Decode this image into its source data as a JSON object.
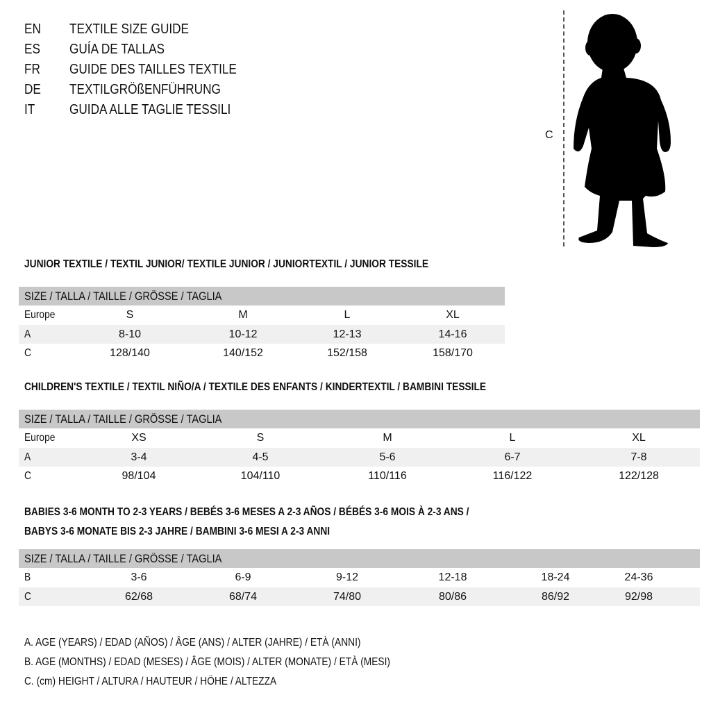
{
  "languages": [
    {
      "code": "EN",
      "title": "TEXTILE SIZE GUIDE"
    },
    {
      "code": "ES",
      "title": "GUÍA DE TALLAS"
    },
    {
      "code": "FR",
      "title": "GUIDE DES TAILLES TEXTILE"
    },
    {
      "code": "DE",
      "title": "TEXTILGRÖßENFÜHRUNG"
    },
    {
      "code": "IT",
      "title": "GUIDA ALLE TAGLIE TESSILI"
    }
  ],
  "figure": {
    "height_label": "C",
    "icon": "child-silhouette-icon"
  },
  "junior": {
    "title": "JUNIOR TEXTILE / TEXTIL JUNIOR/ TEXTILE JUNIOR / JUNIORTEXTIL / JUNIOR TESSILE",
    "header": "SIZE / TALLA / TAILLE / GRÖSSE / TAGLIA",
    "rows": [
      {
        "label": "Europe",
        "cells": [
          "S",
          "M",
          "L",
          "XL"
        ]
      },
      {
        "label": "A",
        "cells": [
          "8-10",
          "10-12",
          "12-13",
          "14-16"
        ]
      },
      {
        "label": "C",
        "cells": [
          "128/140",
          "140/152",
          "152/158",
          "158/170"
        ]
      }
    ]
  },
  "children": {
    "title": "CHILDREN'S TEXTILE / TEXTIL NIÑO/A / TEXTILE DES ENFANTS / KINDERTEXTIL / BAMBINI TESSILE",
    "header": "SIZE / TALLA / TAILLE / GRÖSSE / TAGLIA",
    "rows": [
      {
        "label": "Europe",
        "cells": [
          "XS",
          "S",
          "M",
          "L",
          "XL"
        ]
      },
      {
        "label": "A",
        "cells": [
          "3-4",
          "4-5",
          "5-6",
          "6-7",
          "7-8"
        ]
      },
      {
        "label": "C",
        "cells": [
          "98/104",
          "104/110",
          "110/116",
          "116/122",
          "122/128"
        ]
      }
    ]
  },
  "babies": {
    "title_line1": "BABIES 3-6 MONTH TO 2-3 YEARS / BEBÉS 3-6 MESES A 2-3 AÑOS / BÉBÉS 3-6 MOIS À 2-3 ANS /",
    "title_line2": "BABYS 3-6 MONATE BIS 2-3 JAHRE / BAMBINI 3-6 MESI A 2-3 ANNI",
    "header": "SIZE / TALLA / TAILLE / GRÖSSE / TAGLIA",
    "rows": [
      {
        "label": "B",
        "cells": [
          "3-6",
          "6-9",
          "9-12",
          "12-18",
          "18-24",
          "24-36"
        ]
      },
      {
        "label": "C",
        "cells": [
          "62/68",
          "68/74",
          "74/80",
          "80/86",
          "86/92",
          "92/98"
        ]
      }
    ]
  },
  "legend": [
    "A. AGE (YEARS) / EDAD (AÑOS) / ÂGE (ANS) / ALTER (JAHRE) / ETÀ (ANNI)",
    "B. AGE (MONTHS) / EDAD (MESES) / ÂGE (MOIS) / ALTER (MONATE) / ETÀ (MESI)",
    "C. (cm) HEIGHT / ALTURA / HAUTEUR / HÖHE / ALTEZZA"
  ],
  "colors": {
    "header_bg": "#c8c8c8",
    "alt_row_bg": "#f0f0f0"
  }
}
